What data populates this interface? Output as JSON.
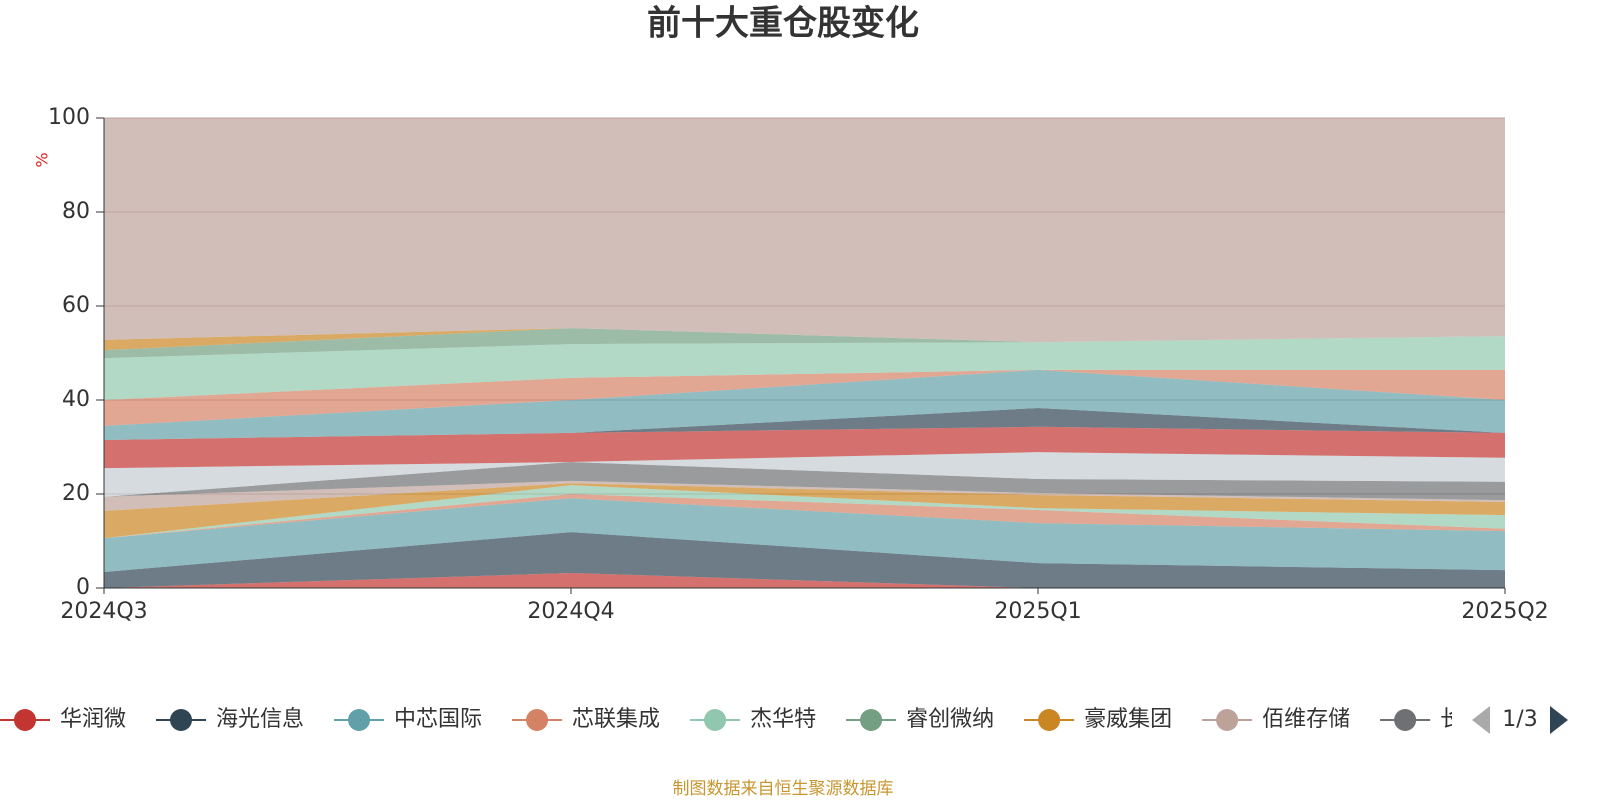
{
  "chart_data": {
    "type": "stacked-area",
    "title": "前十大重仓股变化",
    "y_label": "%",
    "categories": [
      "2024Q3",
      "2024Q4",
      "2025Q1",
      "2025Q2"
    ],
    "ylim": [
      0,
      100
    ],
    "yticks": [
      0,
      20,
      40,
      60,
      80,
      100
    ],
    "grid": true,
    "series": [
      {
        "name": "华润微",
        "color": "#c23531",
        "values": [
          0,
          3.2,
          0,
          0
        ]
      },
      {
        "name": "海光信息",
        "color": "#2f4554",
        "values": [
          3.4,
          8.7,
          5.3,
          3.8
        ]
      },
      {
        "name": "中芯国际",
        "color": "#61a0a8",
        "values": [
          7.2,
          7.2,
          8.5,
          8.3
        ]
      },
      {
        "name": "芯联集成",
        "color": "#d48265",
        "values": [
          0,
          0.9,
          2.8,
          0.5
        ]
      },
      {
        "name": "杰华特",
        "color": "#91c7ae",
        "values": [
          0,
          1.9,
          0.4,
          2.9
        ]
      },
      {
        "name": "睿创微纳",
        "color": "#749f83",
        "values": [
          0,
          0,
          0,
          0
        ]
      },
      {
        "name": "豪威集团",
        "color": "#ca8622",
        "values": [
          5.8,
          0.4,
          2.8,
          2.8
        ]
      },
      {
        "name": "佰维存储",
        "color": "#bda29a",
        "values": [
          3.0,
          0.5,
          0.4,
          0.4
        ]
      },
      {
        "name": "长电科技",
        "color": "#6e7074",
        "values": [
          0,
          4.0,
          3.0,
          3.9
        ]
      },
      {
        "color": "#546570",
        "values": [
          0,
          0,
          0,
          0
        ]
      },
      {
        "color": "#c4ccd3",
        "values": [
          6.1,
          0,
          5.7,
          5.1
        ]
      },
      {
        "color": "#c23531",
        "values": [
          6.0,
          6.2,
          5.4,
          5.3
        ]
      },
      {
        "color": "#2f4554",
        "values": [
          0,
          0,
          4.0,
          0
        ]
      },
      {
        "color": "#61a0a8",
        "values": [
          3.0,
          7.0,
          8.1,
          7.0
        ]
      },
      {
        "color": "#d48265",
        "values": [
          5.5,
          4.7,
          0,
          6.4
        ]
      },
      {
        "color": "#91c7ae",
        "values": [
          8.9,
          7.2,
          5.9,
          7.2
        ]
      },
      {
        "color": "#749f83",
        "values": [
          1.7,
          3.4,
          0,
          0
        ]
      },
      {
        "color": "#ca8622",
        "values": [
          2.2,
          0,
          0,
          0
        ]
      },
      {
        "color": "#bda29a",
        "values": [
          47.2,
          44.7,
          47.7,
          46.4
        ]
      }
    ],
    "legend_page": "1/3",
    "source": "制图数据来自恒生聚源数据库"
  }
}
